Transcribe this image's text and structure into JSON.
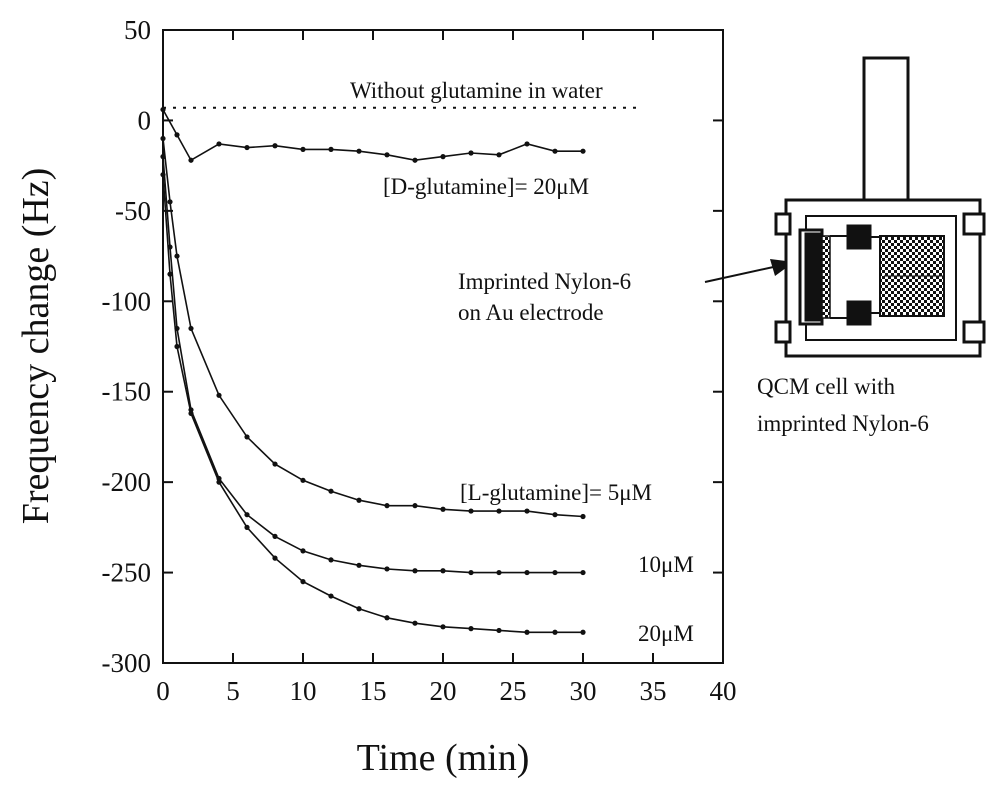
{
  "chart_data": {
    "type": "line",
    "xlabel": "Time (min)",
    "ylabel": "Frequency change (Hz)",
    "xlim": [
      0,
      40
    ],
    "ylim": [
      -300,
      50
    ],
    "xticks": [
      0,
      5,
      10,
      15,
      20,
      25,
      30,
      35,
      40
    ],
    "yticks": [
      50,
      0,
      -50,
      -100,
      -150,
      -200,
      -250,
      -300
    ],
    "grid": false,
    "series": [
      {
        "label_lines": [
          "Without glutamine in water"
        ],
        "style": "dotted",
        "x": [
          0,
          34
        ],
        "y": [
          7,
          7
        ]
      },
      {
        "label_lines": [
          "[D-glutamine]= 20μM"
        ],
        "style": "solid",
        "x": [
          0,
          1,
          2,
          4,
          6,
          8,
          10,
          12,
          14,
          16,
          18,
          20,
          22,
          24,
          26,
          28,
          30
        ],
        "y": [
          6,
          -8,
          -22,
          -13,
          -15,
          -14,
          -16,
          -16,
          -17,
          -19,
          -22,
          -20,
          -18,
          -19,
          -13,
          -17,
          -17
        ]
      },
      {
        "label_lines": [
          "[L-glutamine]= 5μM"
        ],
        "style": "solid",
        "x": [
          0,
          0.5,
          1,
          2,
          4,
          6,
          8,
          10,
          12,
          14,
          16,
          18,
          20,
          22,
          24,
          26,
          28,
          30
        ],
        "y": [
          -10,
          -45,
          -75,
          -115,
          -152,
          -175,
          -190,
          -199,
          -205,
          -210,
          -213,
          -213,
          -215,
          -216,
          -216,
          -216,
          -218,
          -219
        ]
      },
      {
        "label_lines": [
          "10μM"
        ],
        "style": "solid",
        "x": [
          0,
          0.5,
          1,
          2,
          4,
          6,
          8,
          10,
          12,
          14,
          16,
          18,
          20,
          22,
          24,
          26,
          28,
          30
        ],
        "y": [
          -20,
          -70,
          -115,
          -160,
          -198,
          -218,
          -230,
          -238,
          -243,
          -246,
          -248,
          -249,
          -249,
          -250,
          -250,
          -250,
          -250,
          -250
        ]
      },
      {
        "label_lines": [
          "20μM"
        ],
        "style": "solid",
        "x": [
          0,
          0.5,
          1,
          2,
          4,
          6,
          8,
          10,
          12,
          14,
          16,
          18,
          20,
          22,
          24,
          26,
          28,
          30
        ],
        "y": [
          -30,
          -85,
          -125,
          -162,
          -200,
          -225,
          -242,
          -255,
          -263,
          -270,
          -275,
          -278,
          -280,
          -281,
          -282,
          -283,
          -283,
          -283
        ]
      }
    ],
    "annotations": [
      {
        "label_lines": [
          "Imprinted  Nylon-6",
          "on Au electrode"
        ]
      },
      {
        "label_lines": [
          "QCM cell  with",
          "imprinted  Nylon-6"
        ]
      }
    ]
  }
}
